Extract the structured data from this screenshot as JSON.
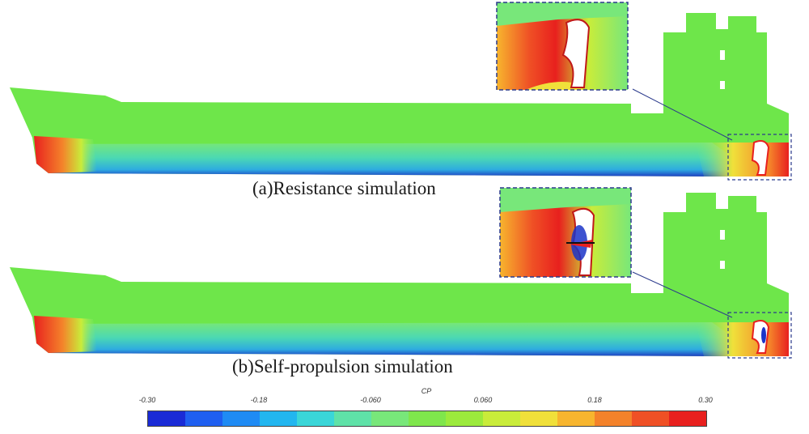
{
  "panels": {
    "a": {
      "caption": "(a)Resistance simulation"
    },
    "b": {
      "caption": "(b)Self-propulsion simulation"
    }
  },
  "colorbar": {
    "title": "CP",
    "ticks": [
      "-0.30",
      "-0.18",
      "-0.060",
      "0.060",
      "0.18",
      "0.30"
    ],
    "range": [
      -0.3,
      0.3
    ],
    "colors": [
      "#1a2bd6",
      "#1f5ff0",
      "#1f8bf4",
      "#22b6ef",
      "#3ad6d8",
      "#5fe2a8",
      "#78e77a",
      "#7fe64c",
      "#9cea3c",
      "#c9ec3a",
      "#f0e03a",
      "#f7b52e",
      "#f4822a",
      "#ef5025",
      "#e8201e"
    ]
  },
  "hull_colors": {
    "base": "#6ee64a",
    "stern_high": "#e8251c",
    "keel_low": "#1b34c8",
    "cyan": "#34d6d0",
    "frame_dash": "#2b3a8c"
  }
}
